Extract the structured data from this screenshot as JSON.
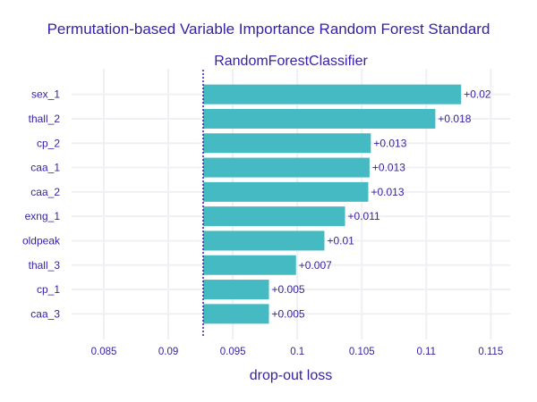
{
  "chart_data": {
    "type": "bar",
    "orientation": "horizontal",
    "title": "Permutation-based Variable Importance Random Forest Standard",
    "subtitle": "RandomForestClassifier",
    "xlabel": "drop-out loss",
    "baseline": 0.0927,
    "xlim": [
      0.0825,
      0.1165
    ],
    "xticks": [
      0.085,
      0.09,
      0.095,
      0.1,
      0.105,
      0.11,
      0.115
    ],
    "xtick_labels": [
      "0.085",
      "0.09",
      "0.095",
      "0.1",
      "0.105",
      "0.11",
      "0.115"
    ],
    "categories": [
      "sex_1",
      "thall_2",
      "cp_2",
      "caa_1",
      "caa_2",
      "exng_1",
      "oldpeak",
      "thall_3",
      "cp_1",
      "caa_3"
    ],
    "values": [
      0.1127,
      0.1107,
      0.1057,
      0.1056,
      0.1055,
      0.1037,
      0.1021,
      0.0999,
      0.0978,
      0.0978
    ],
    "data_labels": [
      "+0.02",
      "+0.018",
      "+0.013",
      "+0.013",
      "+0.013",
      "+0.011",
      "+0.01",
      "+0.007",
      "+0.005",
      "+0.005"
    ],
    "bar_color": "#46bac2",
    "baseline_color": "#371ea3",
    "text_color": "#371ea3",
    "grid": true
  }
}
